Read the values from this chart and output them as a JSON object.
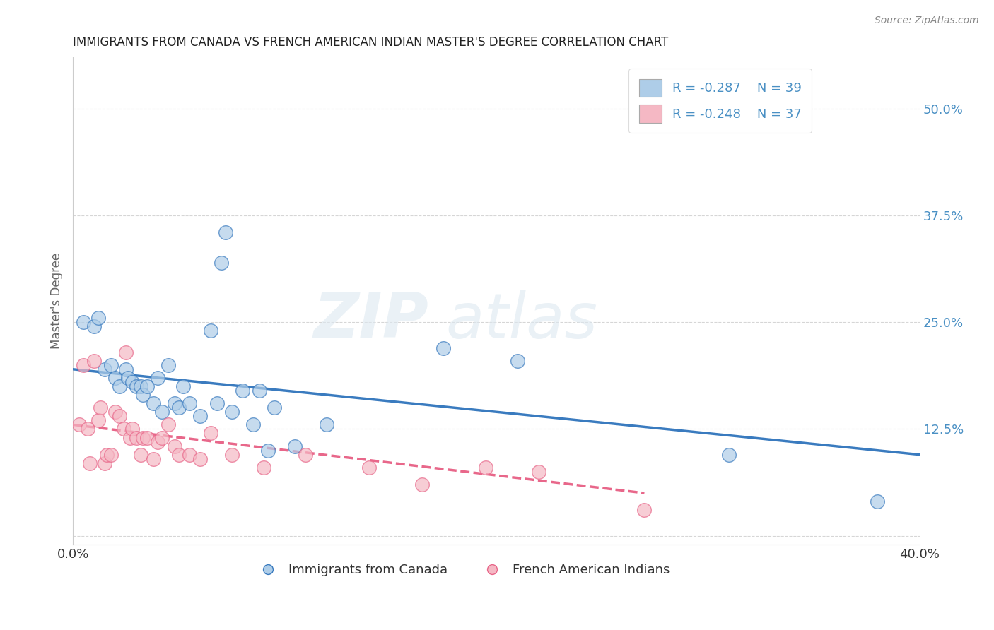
{
  "title": "IMMIGRANTS FROM CANADA VS FRENCH AMERICAN INDIAN MASTER'S DEGREE CORRELATION CHART",
  "source": "Source: ZipAtlas.com",
  "ylabel": "Master's Degree",
  "xlim": [
    0.0,
    0.4
  ],
  "ylim": [
    -0.01,
    0.56
  ],
  "xticks": [
    0.0,
    0.1,
    0.2,
    0.3,
    0.4
  ],
  "xticklabels": [
    "0.0%",
    "",
    "",
    "",
    "40.0%"
  ],
  "yticks": [
    0.0,
    0.125,
    0.25,
    0.375,
    0.5
  ],
  "yticklabels": [
    "",
    "12.5%",
    "25.0%",
    "37.5%",
    "50.0%"
  ],
  "legend_r1": "R = -0.287",
  "legend_n1": "N = 39",
  "legend_r2": "R = -0.248",
  "legend_n2": "N = 37",
  "blue_color": "#aecde8",
  "pink_color": "#f5b8c4",
  "line_blue": "#3a7bbf",
  "line_pink": "#e8678a",
  "tick_color": "#4a90c4",
  "watermark_color": "#e0e8f0",
  "blue_scatter_x": [
    0.005,
    0.01,
    0.012,
    0.015,
    0.018,
    0.02,
    0.022,
    0.025,
    0.026,
    0.028,
    0.03,
    0.032,
    0.033,
    0.035,
    0.038,
    0.04,
    0.042,
    0.045,
    0.048,
    0.05,
    0.052,
    0.055,
    0.06,
    0.065,
    0.068,
    0.07,
    0.072,
    0.075,
    0.08,
    0.085,
    0.088,
    0.092,
    0.095,
    0.105,
    0.12,
    0.175,
    0.21,
    0.31,
    0.38
  ],
  "blue_scatter_y": [
    0.25,
    0.245,
    0.255,
    0.195,
    0.2,
    0.185,
    0.175,
    0.195,
    0.185,
    0.18,
    0.175,
    0.175,
    0.165,
    0.175,
    0.155,
    0.185,
    0.145,
    0.2,
    0.155,
    0.15,
    0.175,
    0.155,
    0.14,
    0.24,
    0.155,
    0.32,
    0.355,
    0.145,
    0.17,
    0.13,
    0.17,
    0.1,
    0.15,
    0.105,
    0.13,
    0.22,
    0.205,
    0.095,
    0.04
  ],
  "pink_scatter_x": [
    0.003,
    0.005,
    0.007,
    0.008,
    0.01,
    0.012,
    0.013,
    0.015,
    0.016,
    0.018,
    0.02,
    0.022,
    0.024,
    0.025,
    0.027,
    0.028,
    0.03,
    0.032,
    0.033,
    0.035,
    0.038,
    0.04,
    0.042,
    0.045,
    0.048,
    0.05,
    0.055,
    0.06,
    0.065,
    0.075,
    0.09,
    0.11,
    0.14,
    0.165,
    0.195,
    0.22,
    0.27
  ],
  "pink_scatter_y": [
    0.13,
    0.2,
    0.125,
    0.085,
    0.205,
    0.135,
    0.15,
    0.085,
    0.095,
    0.095,
    0.145,
    0.14,
    0.125,
    0.215,
    0.115,
    0.125,
    0.115,
    0.095,
    0.115,
    0.115,
    0.09,
    0.11,
    0.115,
    0.13,
    0.105,
    0.095,
    0.095,
    0.09,
    0.12,
    0.095,
    0.08,
    0.095,
    0.08,
    0.06,
    0.08,
    0.075,
    0.03
  ],
  "blue_line_x0": 0.0,
  "blue_line_y0": 0.195,
  "blue_line_x1": 0.4,
  "blue_line_y1": 0.095,
  "pink_line_x0": 0.0,
  "pink_line_y0": 0.13,
  "pink_line_x1": 0.27,
  "pink_line_y1": 0.05
}
